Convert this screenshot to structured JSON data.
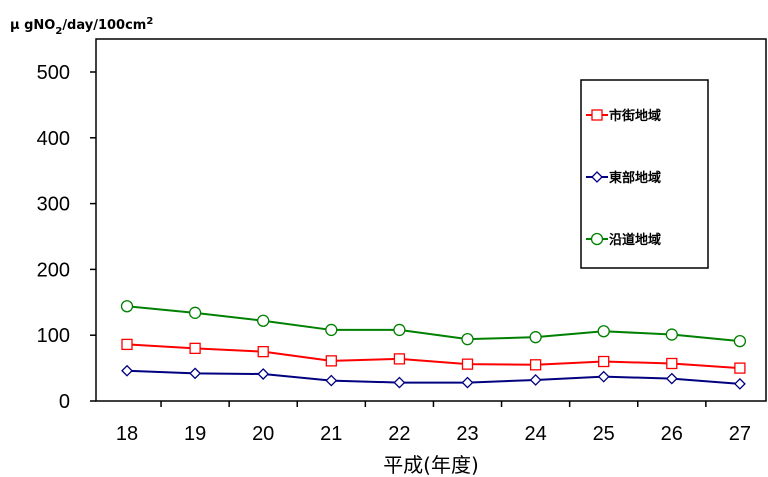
{
  "chart_data": {
    "type": "line",
    "ylabel_parts": [
      "μ gNO",
      "2",
      "/day/100cm",
      "2"
    ],
    "xlabel": "平成(年度)",
    "categories": [
      "18",
      "19",
      "20",
      "21",
      "22",
      "23",
      "24",
      "25",
      "26",
      "27"
    ],
    "ylim": [
      0,
      500
    ],
    "yticks": [
      0,
      100,
      200,
      300,
      400,
      500
    ],
    "grid": false,
    "legend_position": "right",
    "series": [
      {
        "name": "市街地域",
        "color": "#ff0000",
        "marker": "square",
        "values": [
          86,
          80,
          75,
          61,
          64,
          56,
          55,
          60,
          57,
          50
        ]
      },
      {
        "name": "東部地域",
        "color": "#000080",
        "marker": "diamond",
        "values": [
          46,
          42,
          41,
          31,
          28,
          28,
          32,
          37,
          34,
          26
        ]
      },
      {
        "name": "沿道地域",
        "color": "#008000",
        "marker": "circle",
        "values": [
          144,
          134,
          122,
          108,
          108,
          94,
          97,
          106,
          101,
          91
        ]
      }
    ]
  }
}
